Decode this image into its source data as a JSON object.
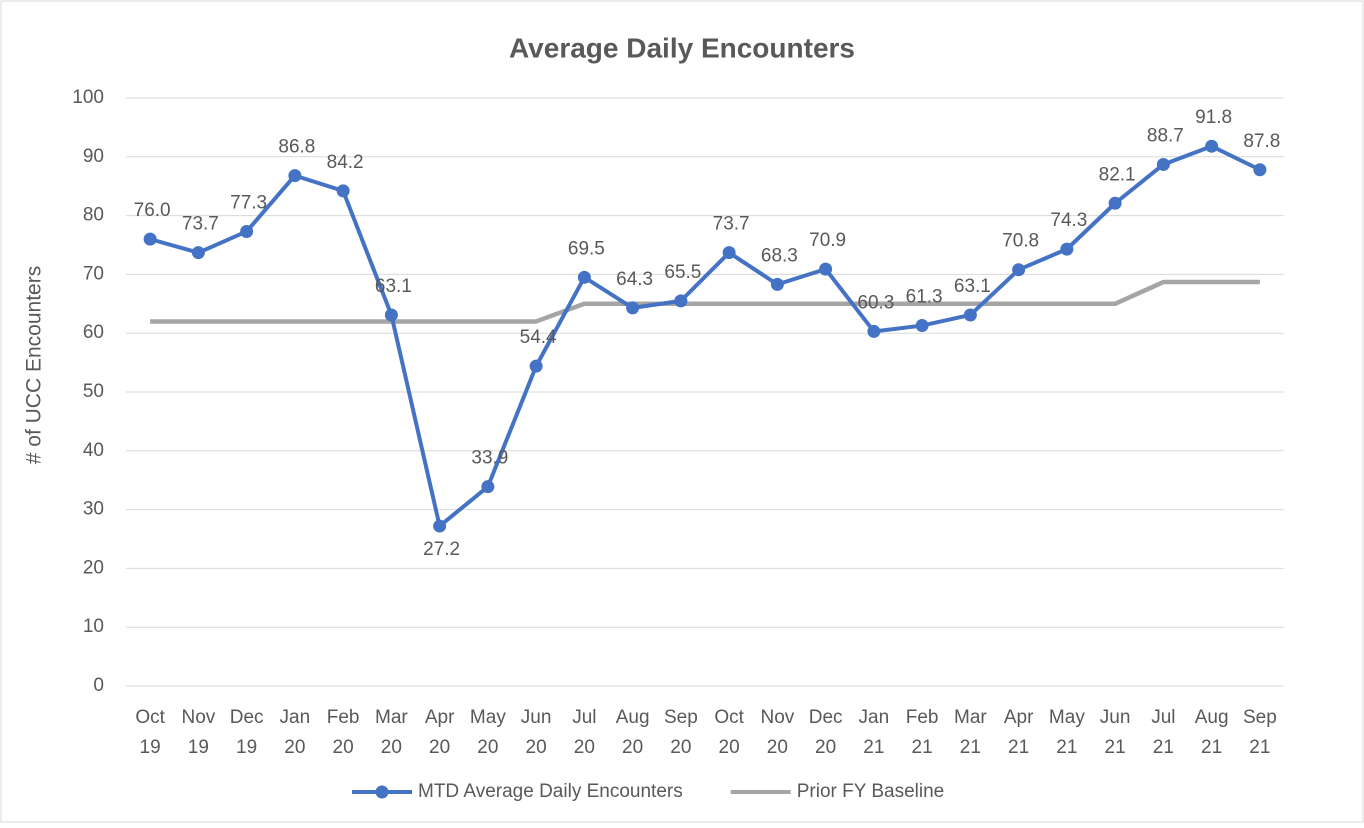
{
  "chart_data": {
    "type": "line",
    "title": "Average Daily Encounters",
    "y_label": "# of UCC Encounters",
    "categories": [
      "Oct 19",
      "Nov 19",
      "Dec 19",
      "Jan 20",
      "Feb 20",
      "Mar 20",
      "Apr 20",
      "May 20",
      "Jun 20",
      "Jul 20",
      "Aug 20",
      "Sep 20",
      "Oct 20",
      "Nov 20",
      "Dec 20",
      "Jan 21",
      "Feb 21",
      "Mar 21",
      "Apr 21",
      "May 21",
      "Jun 21",
      "Jul 21",
      "Aug 21",
      "Sep 21"
    ],
    "series": [
      {
        "name": "MTD Average Daily Encounters",
        "color": "#4472c4",
        "markers": true,
        "values": [
          76.0,
          73.7,
          77.3,
          86.8,
          84.2,
          63.1,
          27.2,
          33.9,
          54.4,
          69.5,
          64.3,
          65.5,
          73.7,
          68.3,
          70.9,
          60.3,
          61.3,
          63.1,
          70.8,
          74.3,
          82.1,
          88.7,
          91.8,
          87.8
        ],
        "value_labels": [
          "76.0",
          "73.7",
          "77.3",
          "86.8",
          "84.2",
          "63.1",
          "27.2",
          "33.9",
          "54.4",
          "69.5",
          "64.3",
          "65.5",
          "73.7",
          "68.3",
          "70.9",
          "60.3",
          "61.3",
          "63.1",
          "70.8",
          "74.3",
          "82.1",
          "88.7",
          "91.8",
          "87.8"
        ]
      },
      {
        "name": "Prior FY Baseline",
        "color": "#a5a5a5",
        "markers": false,
        "values": [
          62,
          62,
          62,
          62,
          62,
          62,
          62,
          62,
          62,
          65,
          65,
          65,
          65,
          65,
          65,
          65,
          65,
          65,
          65,
          65,
          65,
          68.7,
          68.7,
          68.7
        ]
      }
    ],
    "ylim": [
      0,
      100
    ],
    "yticks": [
      0,
      10,
      20,
      30,
      40,
      50,
      60,
      70,
      80,
      90,
      100
    ],
    "grid": true,
    "legend": "bottom"
  }
}
